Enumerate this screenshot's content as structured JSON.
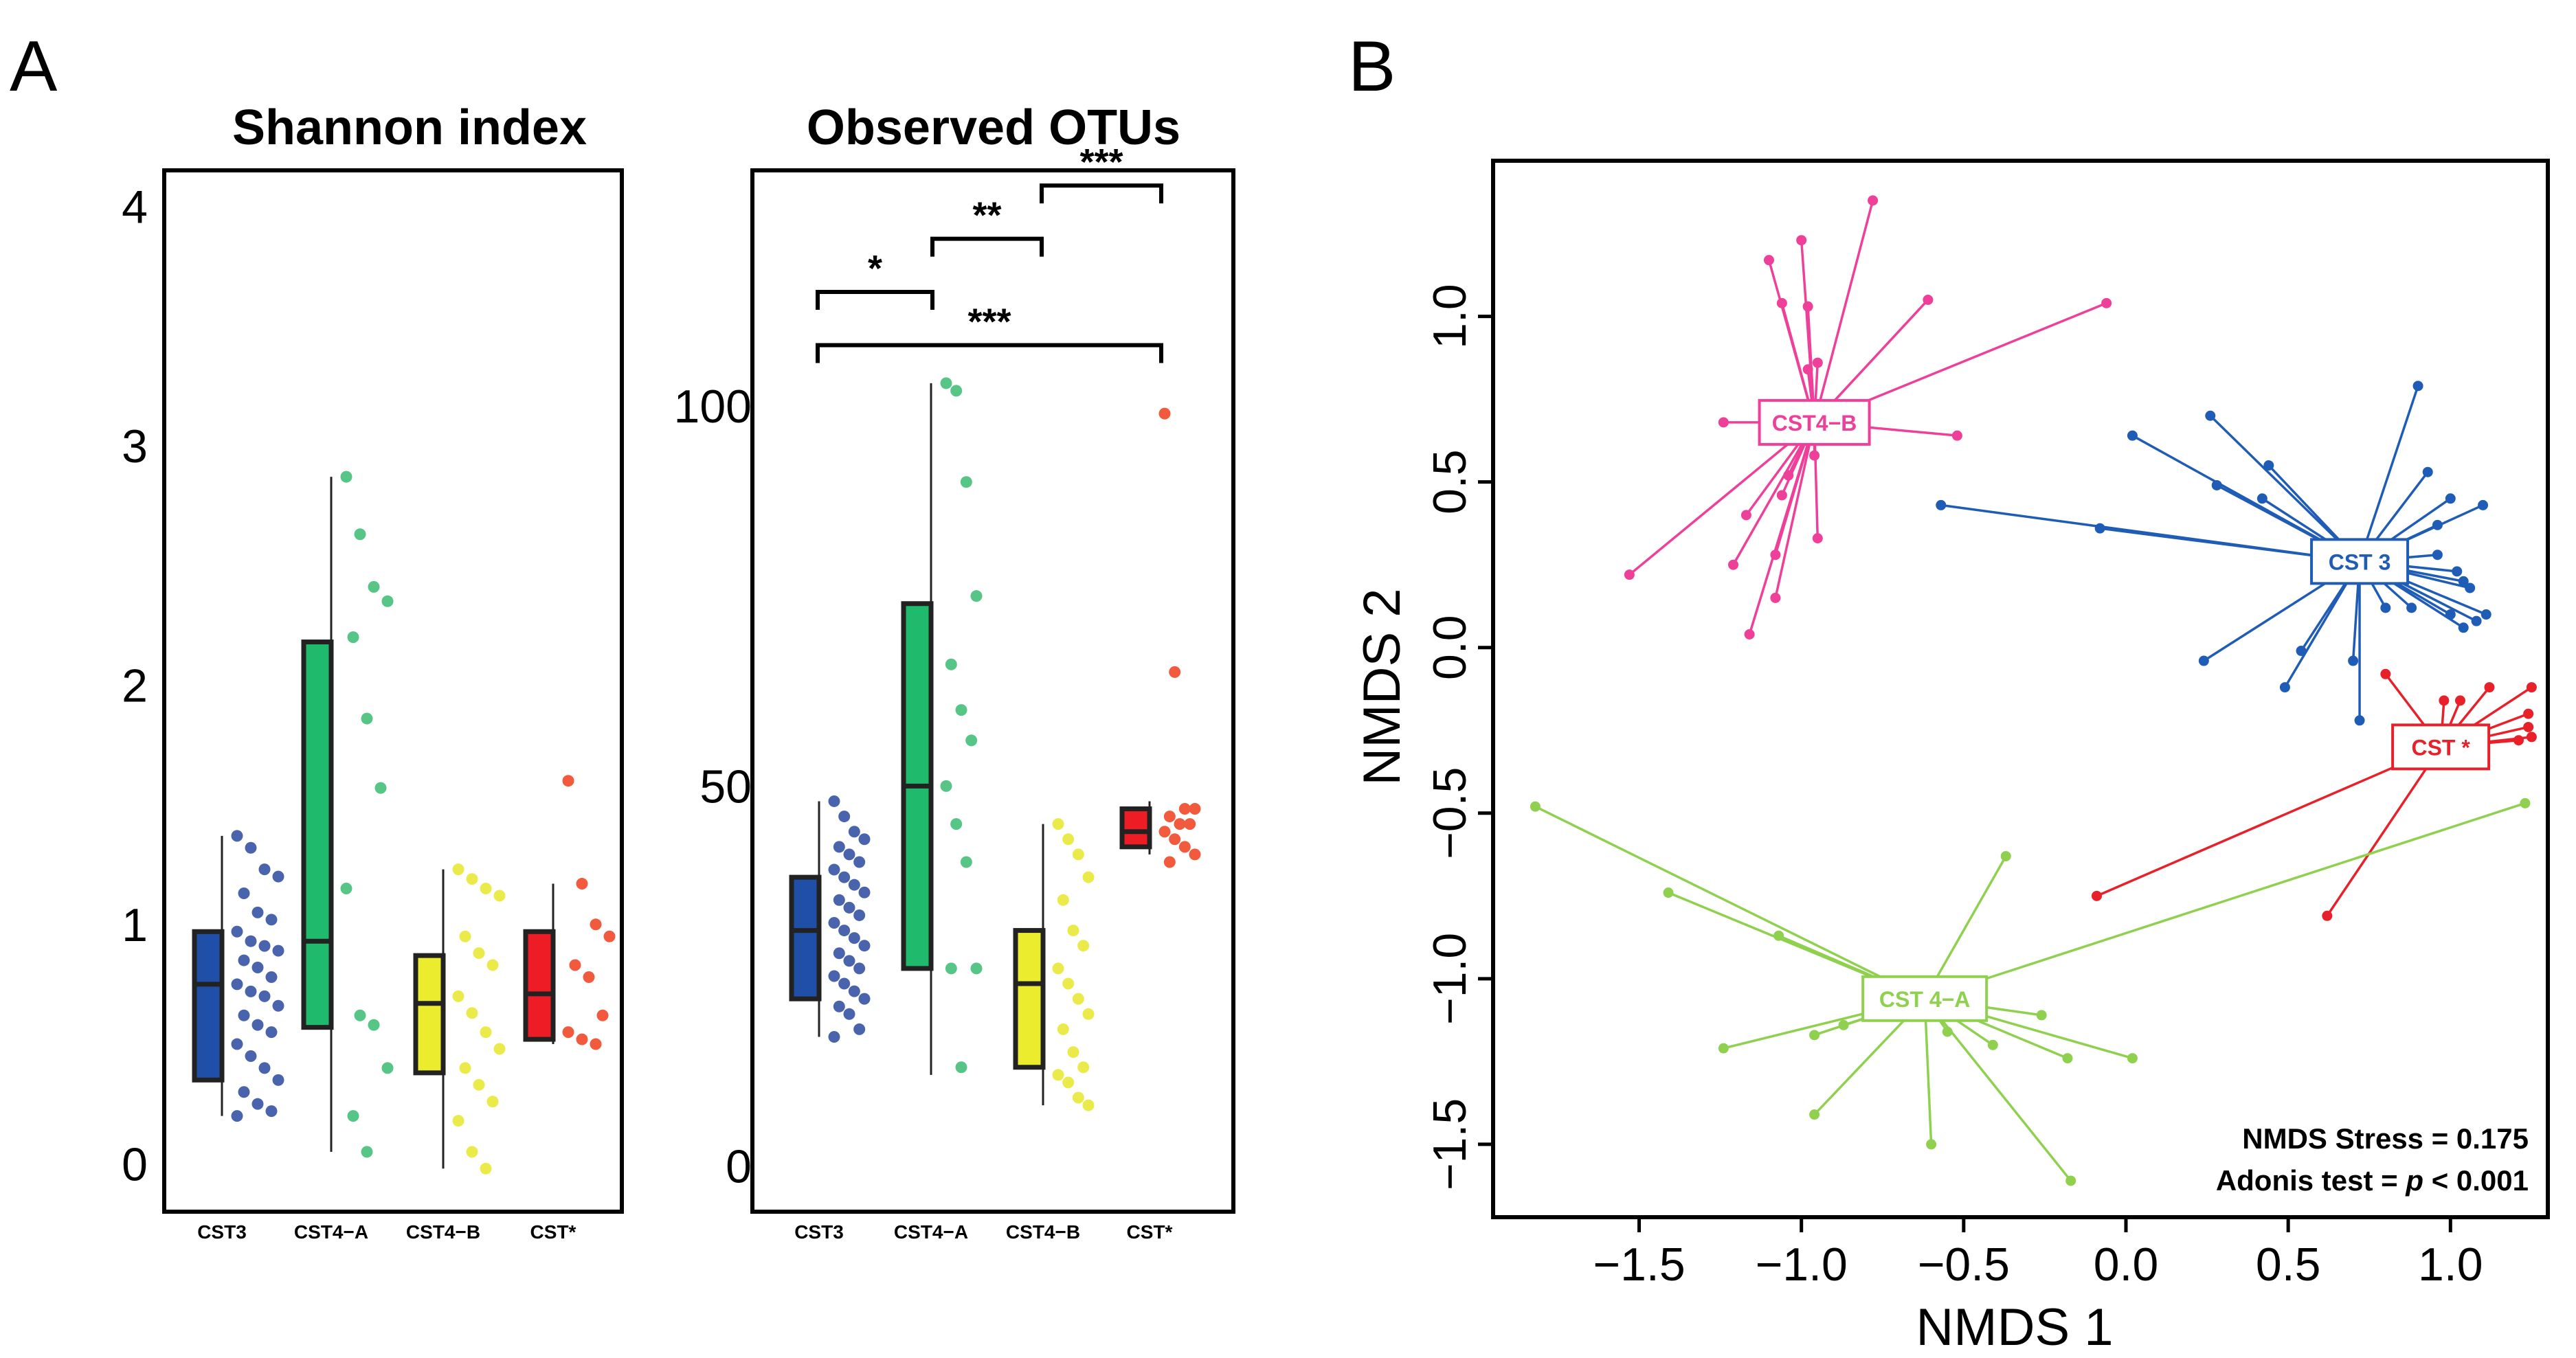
{
  "figure": {
    "panel_a_letter": "A",
    "panel_b_letter": "B"
  },
  "colors": {
    "CST3": "#1f4fa6",
    "CST4-A": "#1fba6b",
    "CST4-B": "#ecec2f",
    "CST*": "#ee1c25",
    "pts_CST3": "#4a63ad",
    "pts_CST4-A": "#56c585",
    "pts_CST4-B": "#eaeb4a",
    "pts_CST*": "#f15a3c",
    "nmds_CST3": "#1f5cb5",
    "nmds_CST4-A": "#8fd14f",
    "nmds_CST4-B": "#ee3f99",
    "nmds_CST*": "#e8202a"
  },
  "chart_data": [
    {
      "type": "box",
      "title": "Shannon index",
      "categories": [
        "CST3",
        "CST4−A",
        "CST4−B",
        "CST*"
      ],
      "yticks": [
        "0",
        "1",
        "2",
        "3",
        "4"
      ],
      "ylim": [
        -0.2,
        4.15
      ],
      "boxes": [
        {
          "q1": 0.35,
          "median": 0.75,
          "q3": 0.97,
          "min": 0.2,
          "max": 1.37
        },
        {
          "q1": 0.57,
          "median": 0.93,
          "q3": 2.18,
          "min": 0.05,
          "max": 2.87
        },
        {
          "q1": 0.38,
          "median": 0.67,
          "q3": 0.87,
          "min": -0.02,
          "max": 1.23
        },
        {
          "q1": 0.52,
          "median": 0.71,
          "q3": 0.97,
          "min": 0.5,
          "max": 1.17
        }
      ],
      "points": [
        [
          1.37,
          1.32,
          1.23,
          1.2,
          1.13,
          1.05,
          1.02,
          0.97,
          0.93,
          0.91,
          0.89,
          0.85,
          0.82,
          0.78,
          0.75,
          0.72,
          0.7,
          0.66,
          0.62,
          0.58,
          0.55,
          0.5,
          0.45,
          0.4,
          0.35,
          0.3,
          0.25,
          0.22,
          0.2
        ],
        [
          2.87,
          2.63,
          2.41,
          2.35,
          2.2,
          1.86,
          1.57,
          1.15,
          0.62,
          0.58,
          0.4,
          0.2,
          0.05
        ],
        [
          1.23,
          1.19,
          1.15,
          1.12,
          0.95,
          0.88,
          0.83,
          0.7,
          0.63,
          0.55,
          0.48,
          0.4,
          0.33,
          0.26,
          0.18,
          0.05,
          -0.02
        ],
        [
          1.6,
          1.17,
          1.0,
          0.95,
          0.83,
          0.78,
          0.62,
          0.55,
          0.52,
          0.5
        ]
      ]
    },
    {
      "type": "box",
      "title": "Observed OTUs",
      "categories": [
        "CST3",
        "CST4−A",
        "CST4−B",
        "CST*"
      ],
      "yticks": [
        "0",
        "50",
        "100"
      ],
      "ylim": [
        -6,
        131
      ],
      "boxes": [
        {
          "q1": 22,
          "median": 31,
          "q3": 38,
          "min": 17,
          "max": 48
        },
        {
          "q1": 26,
          "median": 50,
          "q3": 74,
          "min": 12,
          "max": 103
        },
        {
          "q1": 13,
          "median": 24,
          "q3": 31,
          "min": 8,
          "max": 45
        },
        {
          "q1": 42,
          "median": 44,
          "q3": 47,
          "min": 41,
          "max": 48
        }
      ],
      "points": [
        [
          48,
          46,
          44,
          43,
          42,
          41,
          40,
          39,
          38,
          37,
          36,
          35,
          34,
          33,
          32,
          31,
          30,
          29,
          28,
          27,
          26,
          25,
          24,
          23,
          22,
          21,
          20,
          18,
          17
        ],
        [
          103,
          102,
          90,
          75,
          66,
          60,
          56,
          50,
          45,
          40,
          26,
          26,
          13
        ],
        [
          45,
          43,
          41,
          38,
          35,
          31,
          29,
          26,
          24,
          22,
          20,
          18,
          15,
          13,
          12,
          11,
          9,
          8
        ],
        [
          99,
          65,
          47,
          47,
          46,
          45,
          45,
          44,
          43,
          42,
          41,
          40
        ]
      ],
      "significance": [
        {
          "from": 0,
          "to": 1,
          "label": "*",
          "y": 115
        },
        {
          "from": 1,
          "to": 2,
          "label": "**",
          "y": 122
        },
        {
          "from": 2,
          "to": 3,
          "label": "***",
          "y": 129
        },
        {
          "from": 0,
          "to": 3,
          "label": "***",
          "y": 108
        }
      ]
    },
    {
      "type": "scatter",
      "subtype": "nmds-spider",
      "xlabel": "NMDS 1",
      "ylabel": "NMDS 2",
      "xlim": [
        -1.95,
        1.3
      ],
      "ylim": [
        -1.72,
        1.47
      ],
      "xticks": [
        -1.5,
        -1.0,
        -0.5,
        0.0,
        0.5,
        1.0
      ],
      "yticks": [
        -1.5,
        -1.0,
        -0.5,
        0.0,
        0.5,
        1.0
      ],
      "xtick_labels": [
        "−1.5",
        "−1.0",
        "−0.5",
        "0.0",
        "0.5",
        "1.0"
      ],
      "ytick_labels": [
        "−1.5",
        "−1.0",
        "−0.5",
        "0.0",
        "0.5",
        "1.0"
      ],
      "groups": [
        {
          "name": "CST4-B",
          "label": "CST4−B",
          "colorKey": "nmds_CST4-B",
          "centroid": [
            -0.96,
            0.68
          ],
          "points": [
            [
              -0.78,
              1.35
            ],
            [
              -1.1,
              1.17
            ],
            [
              -1.06,
              1.04
            ],
            [
              -0.98,
              1.03
            ],
            [
              -1.0,
              1.23
            ],
            [
              -0.95,
              0.86
            ],
            [
              -0.61,
              1.05
            ],
            [
              -0.06,
              1.04
            ],
            [
              -1.24,
              0.68
            ],
            [
              -0.52,
              0.64
            ],
            [
              -0.96,
              0.58
            ],
            [
              -1.04,
              0.52
            ],
            [
              -1.06,
              0.46
            ],
            [
              -1.17,
              0.4
            ],
            [
              -0.95,
              0.33
            ],
            [
              -1.08,
              0.28
            ],
            [
              -1.21,
              0.25
            ],
            [
              -1.53,
              0.22
            ],
            [
              -1.08,
              0.15
            ],
            [
              -1.16,
              0.04
            ],
            [
              -0.98,
              0.84
            ]
          ]
        },
        {
          "name": "CST3",
          "label": "CST 3",
          "colorKey": "nmds_CST3",
          "centroid": [
            0.72,
            0.26
          ],
          "points": [
            [
              -0.57,
              0.43
            ],
            [
              -0.08,
              0.36
            ],
            [
              0.02,
              0.64
            ],
            [
              0.26,
              0.7
            ],
            [
              0.44,
              0.55
            ],
            [
              0.28,
              0.49
            ],
            [
              0.42,
              0.45
            ],
            [
              0.9,
              0.79
            ],
            [
              0.93,
              0.53
            ],
            [
              1.0,
              0.45
            ],
            [
              1.1,
              0.43
            ],
            [
              0.96,
              0.37
            ],
            [
              0.96,
              0.28
            ],
            [
              1.02,
              0.23
            ],
            [
              1.04,
              0.2
            ],
            [
              1.06,
              0.18
            ],
            [
              1.0,
              0.1
            ],
            [
              1.08,
              0.08
            ],
            [
              1.04,
              0.06
            ],
            [
              1.11,
              0.1
            ],
            [
              0.88,
              0.12
            ],
            [
              0.8,
              0.12
            ],
            [
              0.7,
              -0.04
            ],
            [
              0.54,
              -0.01
            ],
            [
              0.49,
              -0.12
            ],
            [
              0.24,
              -0.04
            ],
            [
              0.72,
              -0.22
            ]
          ]
        },
        {
          "name": "CST*",
          "label": "CST *",
          "colorKey": "nmds_CST*",
          "centroid": [
            0.97,
            -0.3
          ],
          "points": [
            [
              0.8,
              -0.08
            ],
            [
              0.98,
              -0.16
            ],
            [
              1.03,
              -0.16
            ],
            [
              1.12,
              -0.12
            ],
            [
              1.25,
              -0.12
            ],
            [
              1.24,
              -0.2
            ],
            [
              1.24,
              -0.24
            ],
            [
              1.25,
              -0.27
            ],
            [
              1.21,
              -0.28
            ],
            [
              -0.09,
              -0.75
            ],
            [
              0.62,
              -0.81
            ]
          ]
        },
        {
          "name": "CST4-A",
          "label": "CST 4−A",
          "colorKey": "nmds_CST4-A",
          "centroid": [
            -0.62,
            -1.06
          ],
          "points": [
            [
              -1.82,
              -0.48
            ],
            [
              -1.41,
              -0.74
            ],
            [
              -1.07,
              -0.87
            ],
            [
              -0.37,
              -0.63
            ],
            [
              1.23,
              -0.47
            ],
            [
              -1.24,
              -1.21
            ],
            [
              -0.96,
              -1.17
            ],
            [
              -0.87,
              -1.14
            ],
            [
              -0.55,
              -1.16
            ],
            [
              -0.41,
              -1.2
            ],
            [
              -0.26,
              -1.11
            ],
            [
              -0.18,
              -1.24
            ],
            [
              0.02,
              -1.24
            ],
            [
              -0.96,
              -1.41
            ],
            [
              -0.6,
              -1.5
            ],
            [
              -0.17,
              -1.61
            ],
            [
              -0.71,
              -1.08
            ]
          ]
        }
      ],
      "annotations": [
        "NMDS Stress = 0.175",
        "Adonis test = "
      ],
      "annotation_p": "p",
      "annotation_p_tail": " < 0.001"
    }
  ]
}
